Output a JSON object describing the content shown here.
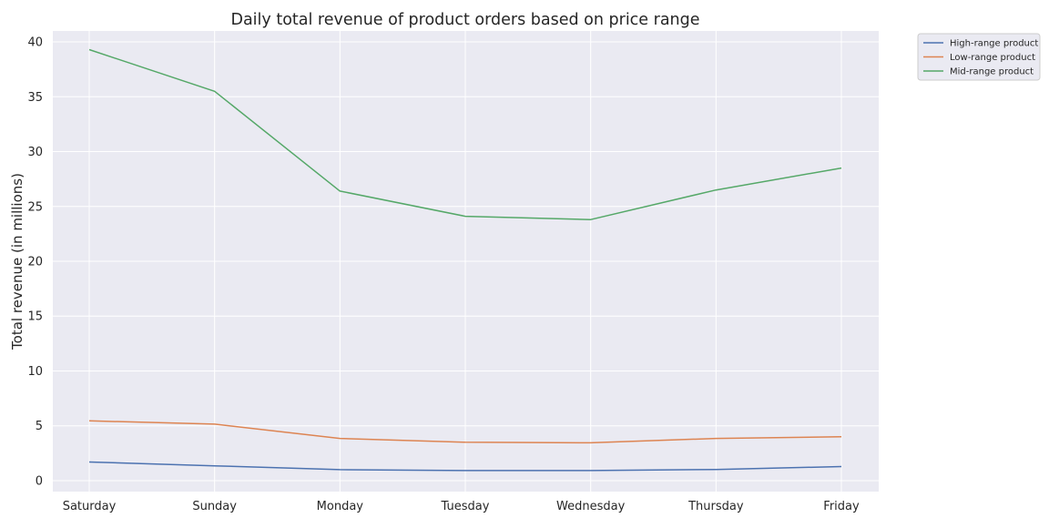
{
  "chart_data": {
    "type": "line",
    "title": "Daily total revenue of product orders based on price range",
    "xlabel": "",
    "ylabel": "Total revenue (in millions)",
    "categories": [
      "Saturday",
      "Sunday",
      "Monday",
      "Tuesday",
      "Wednesday",
      "Thursday",
      "Friday"
    ],
    "ylim": [
      -1,
      41
    ],
    "yticks": [
      0,
      5,
      10,
      15,
      20,
      25,
      30,
      35,
      40
    ],
    "grid": true,
    "legend_position": "outside-top-right",
    "series": [
      {
        "name": "High-range product",
        "color": "#4c72b0",
        "values": [
          1.7,
          1.35,
          1.0,
          0.92,
          0.92,
          1.02,
          1.28
        ]
      },
      {
        "name": "Low-range product",
        "color": "#dd8452",
        "values": [
          5.45,
          5.15,
          3.85,
          3.5,
          3.45,
          3.85,
          4.0
        ]
      },
      {
        "name": "Mid-range product",
        "color": "#55a868",
        "values": [
          39.3,
          35.5,
          26.4,
          24.1,
          23.8,
          26.5,
          28.5
        ]
      }
    ]
  }
}
